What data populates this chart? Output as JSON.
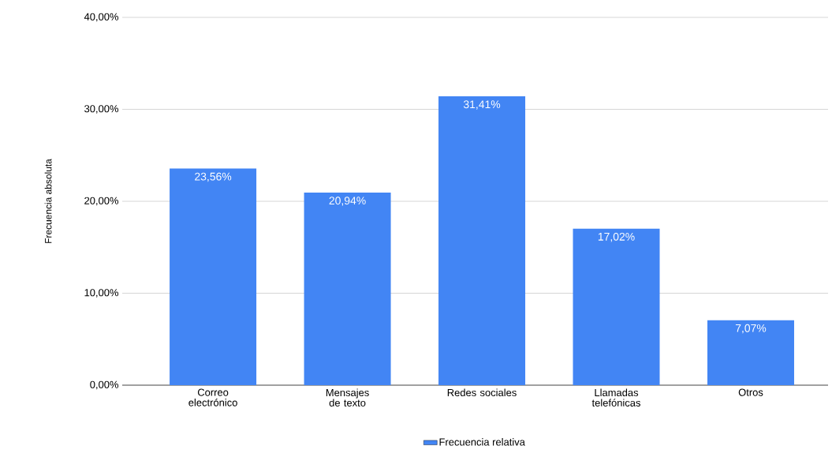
{
  "chart_data": {
    "type": "bar",
    "ylabel": "Frecuencia absoluta",
    "categories": [
      "Correo electrónico",
      "Mensajes de texto",
      "Redes sociales",
      "Llamadas telefónicas",
      "Otros"
    ],
    "series": [
      {
        "name": "Frecuencia relativa",
        "color": "#4285f4",
        "values": [
          23.56,
          20.94,
          31.41,
          17.02,
          7.07
        ],
        "value_labels": [
          "23,56%",
          "20,94%",
          "31,41%",
          "17,02%",
          "7,07%"
        ]
      }
    ],
    "ylim": [
      0,
      40
    ],
    "yticks": [
      {
        "value": 0,
        "label": "0,00%"
      },
      {
        "value": 10,
        "label": "10,00%"
      },
      {
        "value": 20,
        "label": "20,00%"
      },
      {
        "value": 30,
        "label": "30,00%"
      },
      {
        "value": 40,
        "label": "40,00%"
      }
    ],
    "grid": "y",
    "legend": "bottom"
  }
}
